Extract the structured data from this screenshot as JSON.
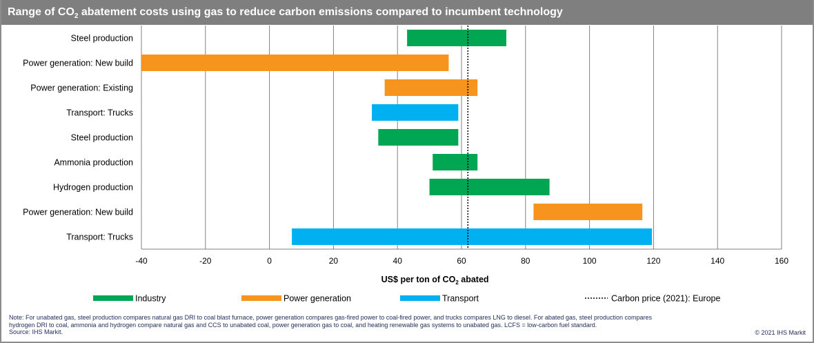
{
  "title_parts": {
    "pre": "Range of CO",
    "sub": "2",
    "post": " abatement costs using gas to reduce carbon emissions compared to incumbent technology"
  },
  "chart_data": {
    "type": "bar",
    "orientation": "horizontal-range",
    "categories": [
      "Steel production",
      "Power generation: New build",
      "Power generation: Existing",
      "Transport: Trucks",
      "Steel production",
      "Ammonia production",
      "Hydrogen production",
      "Power generation: New build",
      "Transport: Trucks"
    ],
    "ranges": [
      [
        43,
        74
      ],
      [
        -40,
        56
      ],
      [
        36,
        65
      ],
      [
        32,
        59
      ],
      [
        34,
        59
      ],
      [
        51,
        65
      ],
      [
        50,
        87.5
      ],
      [
        82.5,
        116.5
      ],
      [
        7,
        119.5
      ]
    ],
    "groups": [
      "Industry",
      "Power generation",
      "Power generation",
      "Transport",
      "Industry",
      "Industry",
      "Industry",
      "Power generation",
      "Transport"
    ],
    "xlim": [
      -40,
      160
    ],
    "xticks": [
      -40,
      -20,
      0,
      20,
      40,
      60,
      80,
      100,
      120,
      140,
      160
    ],
    "xlabel_parts": {
      "pre": "US$ per ton of CO",
      "sub": "2",
      "post": " abated"
    },
    "reference_line": {
      "label": "Carbon price (2021): Europe",
      "value": 62
    },
    "grid": "vertical",
    "legend_position": "bottom",
    "legend": [
      {
        "name": "Industry",
        "color": "#00a651"
      },
      {
        "name": "Power generation",
        "color": "#f7941d"
      },
      {
        "name": "Transport",
        "color": "#00b0f0"
      },
      {
        "name": "Carbon price (2021): Europe",
        "color": "#000000"
      }
    ]
  },
  "notes": {
    "line1": "Note: For unabated gas, steel production compares natural gas DRI to coal blast furnace, power generation compares gas-fired power to coal-fired power,  and trucks compares LNG to diesel. For abated gas, steel production compares",
    "line2": "hydrogen DRI to coal, ammonia and hydrogen compare natural gas and CCS to unabated coal, power generation gas to coal, and heating renewable  gas systems to unabated gas. LCFS = low-carbon  fuel standard.",
    "source": "Source: IHS Markit.",
    "copyright": "© 2021  IHS Markit"
  }
}
